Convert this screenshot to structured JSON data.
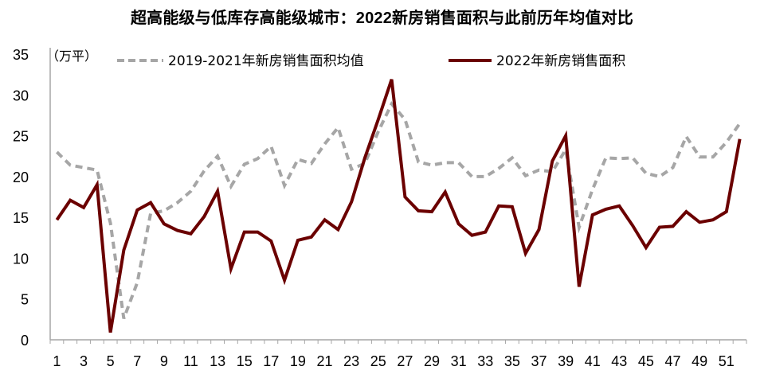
{
  "title": "超高能级与低库存高能级城市：2022新房销售面积与此前历年均值对比",
  "unit_label": "（万平）",
  "legend": [
    {
      "label": "2019-2021年新房销售面积均值",
      "style": "dashed",
      "color": "#A6A6A6"
    },
    {
      "label": "2022年新房销售面积",
      "style": "solid",
      "color": "#6B0000"
    }
  ],
  "chart_data": {
    "type": "line",
    "title": "超高能级与低库存高能级城市：2022新房销售面积与此前历年均值对比",
    "xlabel": "",
    "ylabel": "万平",
    "ylim": [
      0,
      35
    ],
    "yticks": [
      0,
      5,
      10,
      15,
      20,
      25,
      30,
      35
    ],
    "x": [
      1,
      2,
      3,
      4,
      5,
      6,
      7,
      8,
      9,
      10,
      11,
      12,
      13,
      14,
      15,
      16,
      17,
      18,
      19,
      20,
      21,
      22,
      23,
      24,
      25,
      26,
      27,
      28,
      29,
      30,
      31,
      32,
      33,
      34,
      35,
      36,
      37,
      38,
      39,
      40,
      41,
      42,
      43,
      44,
      45,
      46,
      47,
      48,
      49,
      50,
      51,
      52
    ],
    "xtick_labels": [
      "1",
      "3",
      "5",
      "7",
      "9",
      "11",
      "13",
      "15",
      "17",
      "19",
      "21",
      "23",
      "25",
      "27",
      "29",
      "31",
      "33",
      "35",
      "37",
      "39",
      "41",
      "43",
      "45",
      "47",
      "49",
      "51"
    ],
    "grid": false,
    "legend_position": "top",
    "series": [
      {
        "name": "2019-2021年新房销售面积均值",
        "style": "dashed",
        "color": "#A6A6A6",
        "values": [
          23.0,
          21.4,
          21.1,
          20.8,
          14.3,
          2.6,
          7.0,
          15.5,
          15.8,
          16.8,
          18.2,
          20.7,
          22.5,
          18.8,
          21.5,
          22.2,
          23.7,
          18.9,
          22.1,
          21.6,
          24.0,
          26.0,
          20.9,
          21.6,
          25.5,
          28.9,
          27.0,
          21.8,
          21.4,
          21.7,
          21.7,
          20.0,
          20.0,
          21.0,
          22.3,
          20.1,
          20.8,
          20.6,
          23.3,
          13.8,
          18.4,
          22.3,
          22.2,
          22.3,
          20.4,
          20.0,
          21.1,
          24.9,
          22.4,
          22.4,
          24.2,
          26.5
        ]
      },
      {
        "name": "2022年新房销售面积",
        "style": "solid",
        "color": "#6B0000",
        "values": [
          14.7,
          17.1,
          16.2,
          19.0,
          0.9,
          11.0,
          15.9,
          16.8,
          14.2,
          13.4,
          13.0,
          15.1,
          18.2,
          8.7,
          13.2,
          13.2,
          12.1,
          7.3,
          12.2,
          12.6,
          14.7,
          13.5,
          16.9,
          22.3,
          27.0,
          31.9,
          17.5,
          15.8,
          15.7,
          18.1,
          14.2,
          12.8,
          13.2,
          16.4,
          16.3,
          10.6,
          13.5,
          21.9,
          25.0,
          6.5,
          15.3,
          16.0,
          16.4,
          14.0,
          11.3,
          13.8,
          13.9,
          15.7,
          14.4,
          14.7,
          15.7,
          24.6
        ]
      }
    ]
  }
}
